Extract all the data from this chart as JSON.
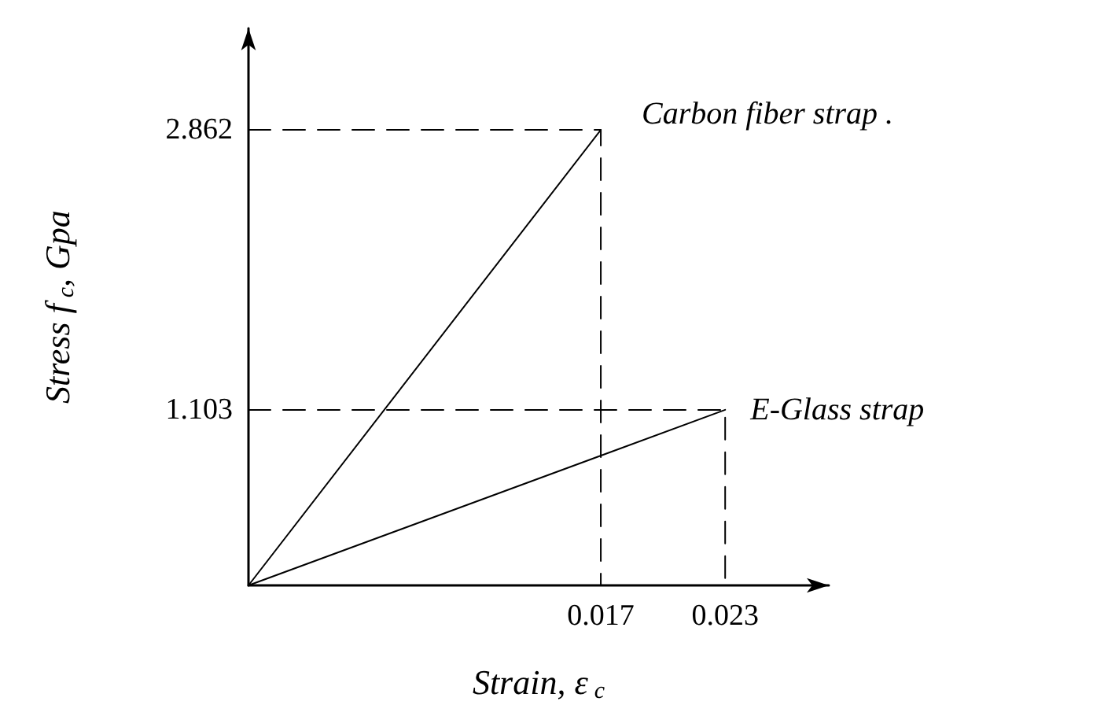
{
  "chart_data": {
    "type": "line",
    "xlabel": "Strain, ε$_{c}$",
    "ylabel": "Stress f$_{c}$, Gpa",
    "xlim": [
      0,
      0.028
    ],
    "ylim": [
      0,
      3.5
    ],
    "xticks": [
      0.017,
      0.023
    ],
    "yticks": [
      1.103,
      2.862
    ],
    "grid": false,
    "legend": false,
    "marker": "none",
    "series": [
      {
        "name": "Carbon fiber strap .",
        "color": "#000000",
        "x": [
          0,
          0.017
        ],
        "values": [
          0,
          2.862
        ],
        "line_style": "solid"
      },
      {
        "name": "E-Glass strap",
        "color": "#000000",
        "x": [
          0,
          0.023
        ],
        "values": [
          0,
          1.103
        ],
        "line_style": "solid"
      },
      {
        "color": "#000000",
        "x": [
          0,
          0.017,
          0.017
        ],
        "values": [
          2.862,
          2.862,
          0
        ],
        "line_style": "dashed"
      },
      {
        "color": "#000000",
        "x": [
          0,
          0.023,
          0.023
        ],
        "values": [
          1.103,
          1.103,
          0
        ],
        "line_style": "dashed"
      }
    ]
  }
}
